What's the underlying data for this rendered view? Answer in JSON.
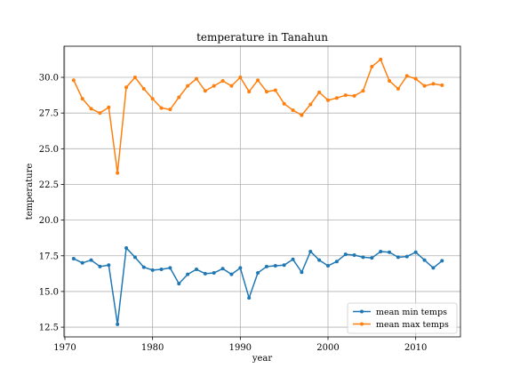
{
  "chart_data": {
    "type": "line",
    "title": "temperature in Tanahun",
    "xlabel": "year",
    "ylabel": "temperature",
    "xlim": [
      1969.9,
      2015.1
    ],
    "ylim": [
      11.82,
      32.18
    ],
    "xticks": [
      1970,
      1980,
      1990,
      2000,
      2010
    ],
    "yticks": [
      12.5,
      15.0,
      17.5,
      20.0,
      22.5,
      25.0,
      27.5,
      30.0
    ],
    "ytick_labels": [
      "12.5",
      "15.0",
      "17.5",
      "20.0",
      "22.5",
      "25.0",
      "27.5",
      "30.0"
    ],
    "grid": true,
    "legend_position": "lower right",
    "x": [
      1971,
      1972,
      1973,
      1974,
      1975,
      1976,
      1977,
      1978,
      1979,
      1980,
      1981,
      1982,
      1983,
      1984,
      1985,
      1986,
      1987,
      1988,
      1989,
      1990,
      1991,
      1992,
      1993,
      1994,
      1995,
      1996,
      1997,
      1998,
      1999,
      2000,
      2001,
      2002,
      2003,
      2004,
      2005,
      2006,
      2007,
      2008,
      2009,
      2010,
      2011,
      2012,
      2013
    ],
    "series": [
      {
        "name": "mean min temps",
        "color": "#1f77b4",
        "marker": "point",
        "values": [
          17.3,
          17.0,
          17.2,
          16.75,
          16.85,
          12.7,
          18.05,
          17.4,
          16.7,
          16.5,
          16.55,
          16.65,
          15.55,
          16.2,
          16.55,
          16.25,
          16.3,
          16.6,
          16.2,
          16.65,
          14.55,
          16.3,
          16.75,
          16.8,
          16.85,
          17.25,
          16.35,
          17.8,
          17.2,
          16.8,
          17.1,
          17.6,
          17.55,
          17.4,
          17.35,
          17.8,
          17.75,
          17.4,
          17.45,
          17.75,
          17.2,
          16.65,
          17.15
        ]
      },
      {
        "name": "mean max temps",
        "color": "#ff7f0e",
        "marker": "point",
        "values": [
          29.8,
          28.5,
          27.8,
          27.5,
          27.9,
          23.3,
          29.3,
          30.0,
          29.2,
          28.5,
          27.85,
          27.75,
          28.6,
          29.4,
          29.9,
          29.05,
          29.4,
          29.75,
          29.4,
          30.0,
          29.0,
          29.8,
          29.0,
          29.1,
          28.15,
          27.7,
          27.35,
          28.1,
          28.95,
          28.4,
          28.55,
          28.75,
          28.7,
          29.05,
          30.75,
          31.25,
          29.75,
          29.2,
          30.1,
          29.9,
          29.4,
          29.55,
          29.45
        ]
      }
    ]
  }
}
